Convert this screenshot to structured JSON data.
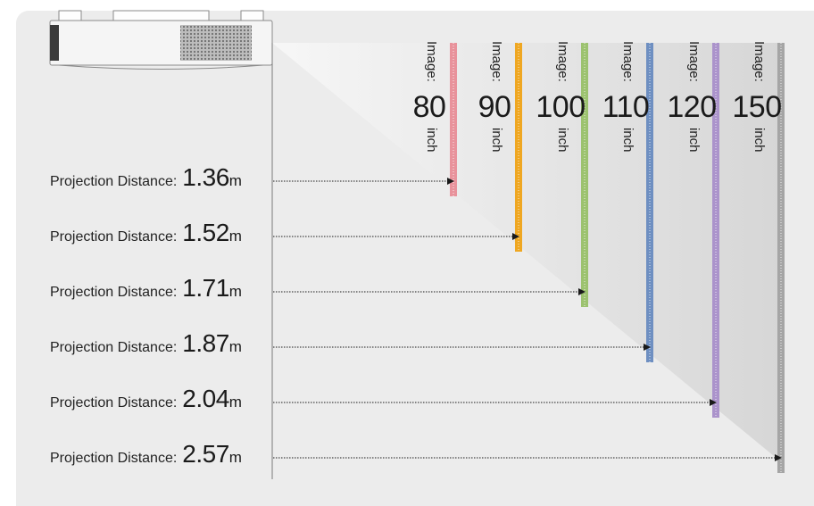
{
  "diagram": {
    "label_prefix": "Projection Distance",
    "colon": ":",
    "unit_distance": "m",
    "image_prefix": "Image:",
    "unit_size": "inch",
    "rows": [
      {
        "distance": "1.36",
        "size": "80",
        "color": "#e8929b"
      },
      {
        "distance": "1.52",
        "size": "90",
        "color": "#efa722"
      },
      {
        "distance": "1.71",
        "size": "100",
        "color": "#9cc26f"
      },
      {
        "distance": "1.87",
        "size": "110",
        "color": "#6e8fc1"
      },
      {
        "distance": "2.04",
        "size": "120",
        "color": "#ab93cb"
      },
      {
        "distance": "2.57",
        "size": "150",
        "color": "#a5a5a5"
      }
    ]
  }
}
